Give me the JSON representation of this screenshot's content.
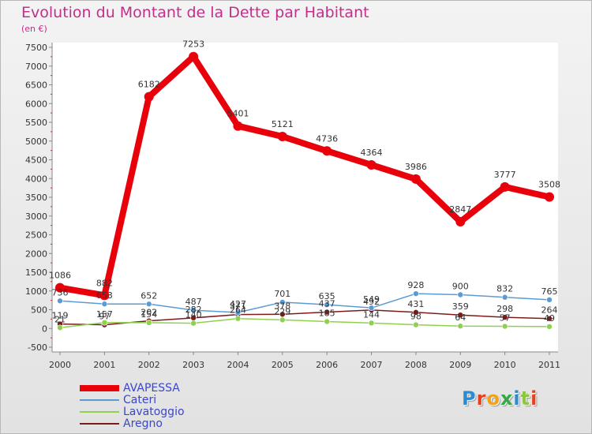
{
  "title": "Evolution du Montant de la Dette par Habitant",
  "subtitle": "(en €)",
  "logo": {
    "text": "Proxiti",
    "colors": [
      "#2e8bd0",
      "#e8401c",
      "#f2a21a",
      "#36a845",
      "#2e8bd0",
      "#8ec63f",
      "#e8401c"
    ]
  },
  "chart_data": {
    "type": "line",
    "x": [
      "2000",
      "2001",
      "2002",
      "2003",
      "2004",
      "2005",
      "2006",
      "2007",
      "2008",
      "2009",
      "2010",
      "2011"
    ],
    "ylim": [
      -500,
      7500
    ],
    "yticks": [
      "-500",
      "0",
      "500",
      "1000",
      "1500",
      "2000",
      "2500",
      "3000",
      "3500",
      "4000",
      "4500",
      "5000",
      "5500",
      "6000",
      "6500",
      "7000",
      "7500"
    ],
    "grid": false,
    "legend_position": "bottom-left",
    "series": [
      {
        "name": "AVAPESSA",
        "color": "#e8000b",
        "width": 8,
        "marker": 6,
        "values": [
          1086,
          882,
          6182,
          7253,
          5401,
          5121,
          4736,
          4364,
          3986,
          2847,
          3777,
          3508
        ],
        "labels": [
          "1086",
          "882",
          "6182",
          "7253",
          "5401",
          "5121",
          "4736",
          "4364",
          "3986",
          "2847",
          "3777",
          "3508"
        ]
      },
      {
        "name": "Cateri",
        "color": "#5b9bd5",
        "width": 1.5,
        "marker": 3.5,
        "values": [
          736,
          653,
          652,
          487,
          427,
          701,
          635,
          549,
          928,
          900,
          832,
          765
        ],
        "labels": [
          "736",
          "653",
          "652",
          "487",
          "427",
          "701",
          "635",
          "549",
          "928",
          "900",
          "832",
          "765"
        ]
      },
      {
        "name": "Lavatoggio",
        "color": "#8fd14f",
        "width": 1.5,
        "marker": 3.5,
        "values": [
          21,
          157,
          154,
          140,
          264,
          229,
          185,
          144,
          98,
          64,
          57,
          49
        ],
        "labels": [
          "21",
          "157",
          "154",
          "140",
          "264",
          "229",
          "185",
          "144",
          "98",
          "64",
          "57",
          "49"
        ]
      },
      {
        "name": "Aregno",
        "color": "#7b1c1c",
        "width": 1.5,
        "marker": 3.5,
        "values": [
          119,
          97,
          202,
          282,
          371,
          378,
          437,
          492,
          431,
          359,
          298,
          264
        ],
        "labels": [
          "119",
          "97",
          "202",
          "282",
          "371",
          "378",
          "437",
          "492",
          "431",
          "359",
          "298",
          "264"
        ]
      }
    ]
  }
}
